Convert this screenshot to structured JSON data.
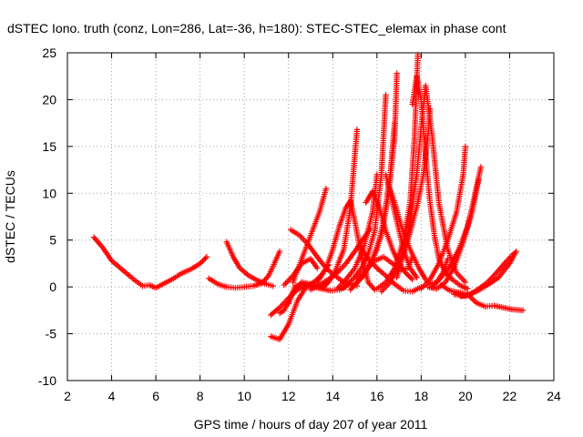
{
  "chart_data": {
    "type": "scatter",
    "title": "dSTEC Iono. truth (conz, Lon=286, Lat=-36, h=180): STEC-STEC_elemax in phase cont",
    "xlabel": "GPS time / hours of day 207 of year 2011",
    "ylabel": "dSTEC  / TECUs",
    "xlim": [
      2,
      24
    ],
    "ylim": [
      -10,
      25
    ],
    "xticks": [
      "2",
      "4",
      "6",
      "8",
      "10",
      "12",
      "14",
      "16",
      "18",
      "20",
      "22",
      "24"
    ],
    "yticks": [
      "-10",
      "-5",
      "0",
      "5",
      "10",
      "15",
      "20",
      "25"
    ],
    "grid": true,
    "marker": "plus",
    "color": "#ff0000",
    "series": [
      {
        "x": [
          3.2,
          3.6,
          4.0,
          4.5,
          5.0,
          5.4,
          5.7,
          6.0,
          6.4,
          6.8,
          7.2,
          7.6,
          8.0,
          8.3
        ],
        "y": [
          5.3,
          4.2,
          2.8,
          1.8,
          0.8,
          0.1,
          0.2,
          -0.1,
          0.4,
          0.9,
          1.5,
          1.9,
          2.5,
          3.2
        ]
      },
      {
        "x": [
          8.4,
          8.8,
          9.2,
          9.6,
          10.0,
          10.4,
          10.8,
          11.1,
          11.3,
          11.6
        ],
        "y": [
          0.9,
          0.3,
          0.0,
          -0.1,
          0.0,
          0.1,
          0.4,
          1.2,
          2.2,
          3.8
        ]
      },
      {
        "x": [
          9.2,
          9.5,
          9.8,
          10.2,
          10.6,
          11.0,
          11.3
        ],
        "y": [
          4.8,
          3.2,
          2.0,
          1.2,
          0.7,
          0.3,
          0.1
        ]
      },
      {
        "x": [
          11.2,
          11.6,
          12.0,
          12.4,
          12.8,
          13.1
        ],
        "y": [
          -3.0,
          -2.2,
          -1.2,
          -0.3,
          0.1,
          0.3
        ]
      },
      {
        "x": [
          11.2,
          11.6,
          12.0,
          12.4,
          12.8,
          13.2,
          13.5,
          13.8
        ],
        "y": [
          -5.3,
          -5.6,
          -4.0,
          -1.5,
          0.0,
          0.6,
          1.3,
          2.3
        ]
      },
      {
        "x": [
          11.6,
          11.8,
          12.2,
          12.6,
          13.0,
          13.4,
          13.7
        ],
        "y": [
          -2.8,
          -2.5,
          -0.6,
          0.5,
          0.3,
          0.0,
          0.3
        ]
      },
      {
        "x": [
          12.0,
          12.3,
          12.7,
          13.1,
          13.5,
          13.9,
          14.3,
          14.6
        ],
        "y": [
          -1.8,
          0.1,
          0.3,
          0.0,
          -0.2,
          -0.4,
          -0.3,
          0.0
        ]
      },
      {
        "x": [
          11.8,
          12.2,
          12.6,
          13.0,
          13.3
        ],
        "y": [
          0.2,
          1.2,
          2.5,
          3.0,
          2.0
        ]
      },
      {
        "x": [
          12.1,
          12.5,
          12.9,
          13.3,
          13.7,
          14.1,
          14.5,
          14.9,
          15.1
        ],
        "y": [
          6.1,
          5.5,
          4.5,
          3.2,
          2.0,
          1.2,
          0.5,
          0.2,
          0.1
        ]
      },
      {
        "x": [
          12.2,
          12.6,
          13.0,
          13.4,
          13.7
        ],
        "y": [
          0.5,
          3.0,
          5.5,
          8.0,
          10.5
        ]
      },
      {
        "x": [
          13.5,
          13.8,
          14.1,
          14.5,
          14.8,
          15.1
        ],
        "y": [
          -0.2,
          0.5,
          1.6,
          4.0,
          8.5,
          16.8
        ]
      },
      {
        "x": [
          13.3,
          13.7,
          14.0,
          14.3,
          14.6,
          14.8,
          15.0,
          15.2,
          15.4,
          15.6,
          15.9
        ],
        "y": [
          0.5,
          2.0,
          4.0,
          6.5,
          8.5,
          9.2,
          7.0,
          4.5,
          2.5,
          0.5,
          -0.3
        ]
      },
      {
        "x": [
          13.0,
          13.4,
          13.8,
          14.2,
          14.6,
          15.0,
          15.4,
          15.7
        ],
        "y": [
          -0.3,
          0.2,
          0.8,
          1.5,
          2.5,
          3.8,
          5.2,
          6.2
        ]
      },
      {
        "x": [
          14.2,
          14.6,
          15.0,
          15.4,
          15.8,
          16.0
        ],
        "y": [
          -0.2,
          0.8,
          2.0,
          4.2,
          8.0,
          12.0
        ]
      },
      {
        "x": [
          14.5,
          14.9,
          15.3,
          15.6,
          15.9,
          16.2,
          16.4
        ],
        "y": [
          -0.1,
          0.8,
          2.0,
          3.5,
          6.0,
          12.0,
          20.5
        ]
      },
      {
        "x": [
          15.0,
          15.4,
          15.8,
          16.2,
          16.5,
          16.8,
          16.9
        ],
        "y": [
          0.2,
          1.2,
          3.0,
          5.5,
          9.5,
          16.0,
          22.8
        ]
      },
      {
        "x": [
          14.8,
          15.2,
          15.6,
          16.0,
          16.3,
          16.6,
          16.8
        ],
        "y": [
          -0.3,
          0.8,
          2.0,
          4.0,
          7.0,
          12.0,
          17.5
        ]
      },
      {
        "x": [
          16.0,
          16.4,
          16.8,
          17.2,
          17.5,
          17.7,
          17.85
        ],
        "y": [
          -0.2,
          0.5,
          2.0,
          5.0,
          9.0,
          16.0,
          24.8
        ]
      },
      {
        "x": [
          16.2,
          16.6,
          17.0,
          17.4,
          17.8,
          18.1,
          18.3,
          18.4
        ],
        "y": [
          -0.5,
          0.5,
          2.5,
          5.0,
          8.5,
          12.0,
          16.0,
          19.0
        ]
      },
      {
        "x": [
          16.5,
          16.8,
          17.1,
          17.5,
          17.9,
          18.2,
          18.4,
          18.7,
          19.0,
          19.2
        ],
        "y": [
          11.0,
          9.0,
          6.5,
          4.0,
          2.0,
          0.8,
          0.3,
          0.5,
          1.6,
          3.0
        ]
      },
      {
        "x": [
          16.9,
          17.2,
          17.5,
          17.8,
          18.0,
          18.2,
          18.5,
          18.8,
          19.2,
          19.6,
          20.0
        ],
        "y": [
          1.0,
          3.5,
          7.0,
          12.0,
          17.0,
          21.5,
          16.0,
          9.0,
          4.0,
          1.5,
          0.5
        ]
      },
      {
        "x": [
          17.6,
          17.8,
          18.0,
          18.2,
          18.4,
          18.6,
          18.8,
          19.1,
          19.4,
          19.8,
          20.1
        ],
        "y": [
          19.5,
          22.5,
          20.0,
          14.0,
          9.0,
          5.5,
          3.0,
          1.5,
          0.8,
          0.1,
          -0.2
        ]
      },
      {
        "x": [
          15.5,
          15.8,
          16.1,
          16.4,
          16.7,
          17.0,
          17.3,
          17.6
        ],
        "y": [
          9.0,
          10.2,
          8.5,
          6.0,
          4.0,
          2.5,
          1.5,
          0.8
        ]
      },
      {
        "x": [
          16.4,
          16.8,
          17.2,
          17.5,
          17.8
        ],
        "y": [
          12.0,
          8.0,
          4.0,
          2.0,
          1.0
        ]
      },
      {
        "x": [
          15.1,
          15.5,
          15.9,
          16.3,
          16.7,
          17.1,
          17.4,
          17.6
        ],
        "y": [
          0.8,
          1.8,
          2.8,
          3.2,
          2.5,
          1.8,
          2.0,
          3.2
        ]
      },
      {
        "x": [
          15.2,
          15.6,
          16.0,
          16.4,
          16.8,
          17.2,
          17.6,
          18.0
        ],
        "y": [
          4.5,
          3.0,
          2.0,
          1.2,
          0.3,
          -0.4,
          -0.5,
          0.0
        ]
      },
      {
        "x": [
          18.0,
          18.4,
          18.8,
          19.2,
          19.6,
          19.9,
          20.0
        ],
        "y": [
          -0.2,
          0.8,
          2.5,
          5.0,
          8.0,
          12.0,
          15.0
        ]
      },
      {
        "x": [
          18.5,
          18.9,
          19.3,
          19.7,
          20.1,
          20.4,
          20.7
        ],
        "y": [
          0.0,
          1.0,
          2.2,
          4.0,
          6.5,
          9.5,
          12.8
        ]
      },
      {
        "x": [
          18.3,
          18.7,
          19.1,
          19.5,
          19.9,
          20.3,
          20.6
        ],
        "y": [
          0.0,
          -0.2,
          0.5,
          2.2,
          4.8,
          8.0,
          11.5
        ]
      },
      {
        "x": [
          18.9,
          19.3,
          19.7,
          20.1,
          20.5,
          20.9,
          21.3,
          21.7,
          22.1,
          22.6
        ],
        "y": [
          0.2,
          -0.4,
          -0.6,
          -0.8,
          -1.7,
          -2.1,
          -2.0,
          -2.2,
          -2.4,
          -2.5
        ]
      },
      {
        "x": [
          19.5,
          20.0,
          20.5,
          21.0,
          21.5,
          22.0,
          22.3
        ],
        "y": [
          -0.8,
          -1.0,
          -0.5,
          0.2,
          1.0,
          2.5,
          3.8
        ]
      },
      {
        "x": [
          19.8,
          20.2,
          20.6,
          21.0,
          21.4,
          21.8,
          22.2
        ],
        "y": [
          -1.0,
          -0.8,
          -0.2,
          0.5,
          1.5,
          2.6,
          3.6
        ]
      }
    ]
  }
}
